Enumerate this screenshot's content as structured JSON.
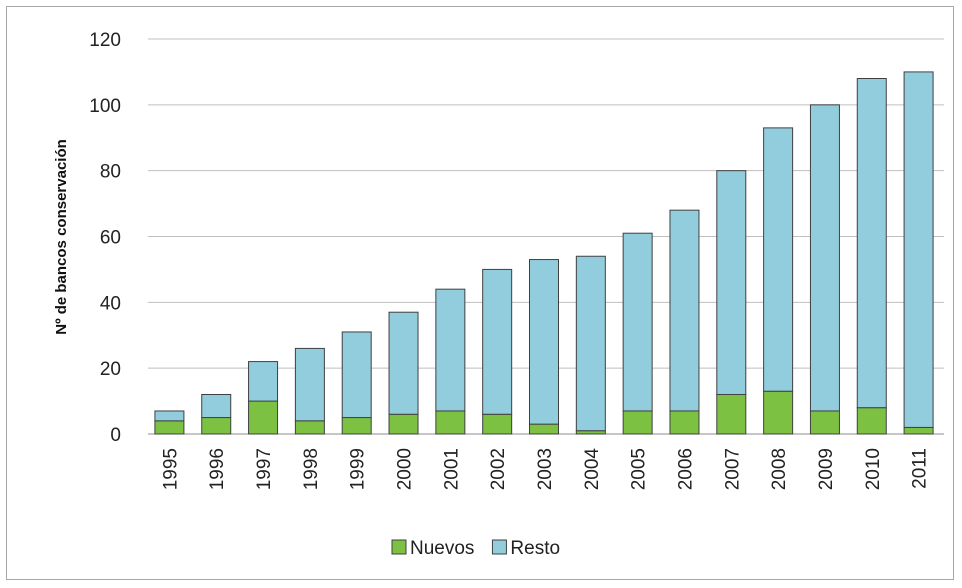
{
  "chart_data": {
    "type": "bar",
    "stacked": true,
    "categories": [
      "1995",
      "1996",
      "1997",
      "1998",
      "1999",
      "2000",
      "2001",
      "2002",
      "2003",
      "2004",
      "2005",
      "2006",
      "2007",
      "2008",
      "2009",
      "2010",
      "2011"
    ],
    "series": [
      {
        "name": "Nuevos",
        "color": "#7dc142",
        "values": [
          4,
          5,
          10,
          4,
          5,
          6,
          7,
          6,
          3,
          1,
          7,
          7,
          12,
          13,
          7,
          8,
          2
        ]
      },
      {
        "name": "Resto",
        "color": "#92cddd",
        "values": [
          3,
          7,
          12,
          22,
          26,
          31,
          37,
          44,
          50,
          53,
          54,
          61,
          68,
          80,
          93,
          100,
          108
        ]
      }
    ],
    "ylabel": "Nº de bancos conservación",
    "ylim": [
      0,
      120
    ],
    "yticks": [
      "0",
      "20",
      "40",
      "60",
      "80",
      "100",
      "120"
    ],
    "grid": true,
    "legend_position": "bottom"
  }
}
